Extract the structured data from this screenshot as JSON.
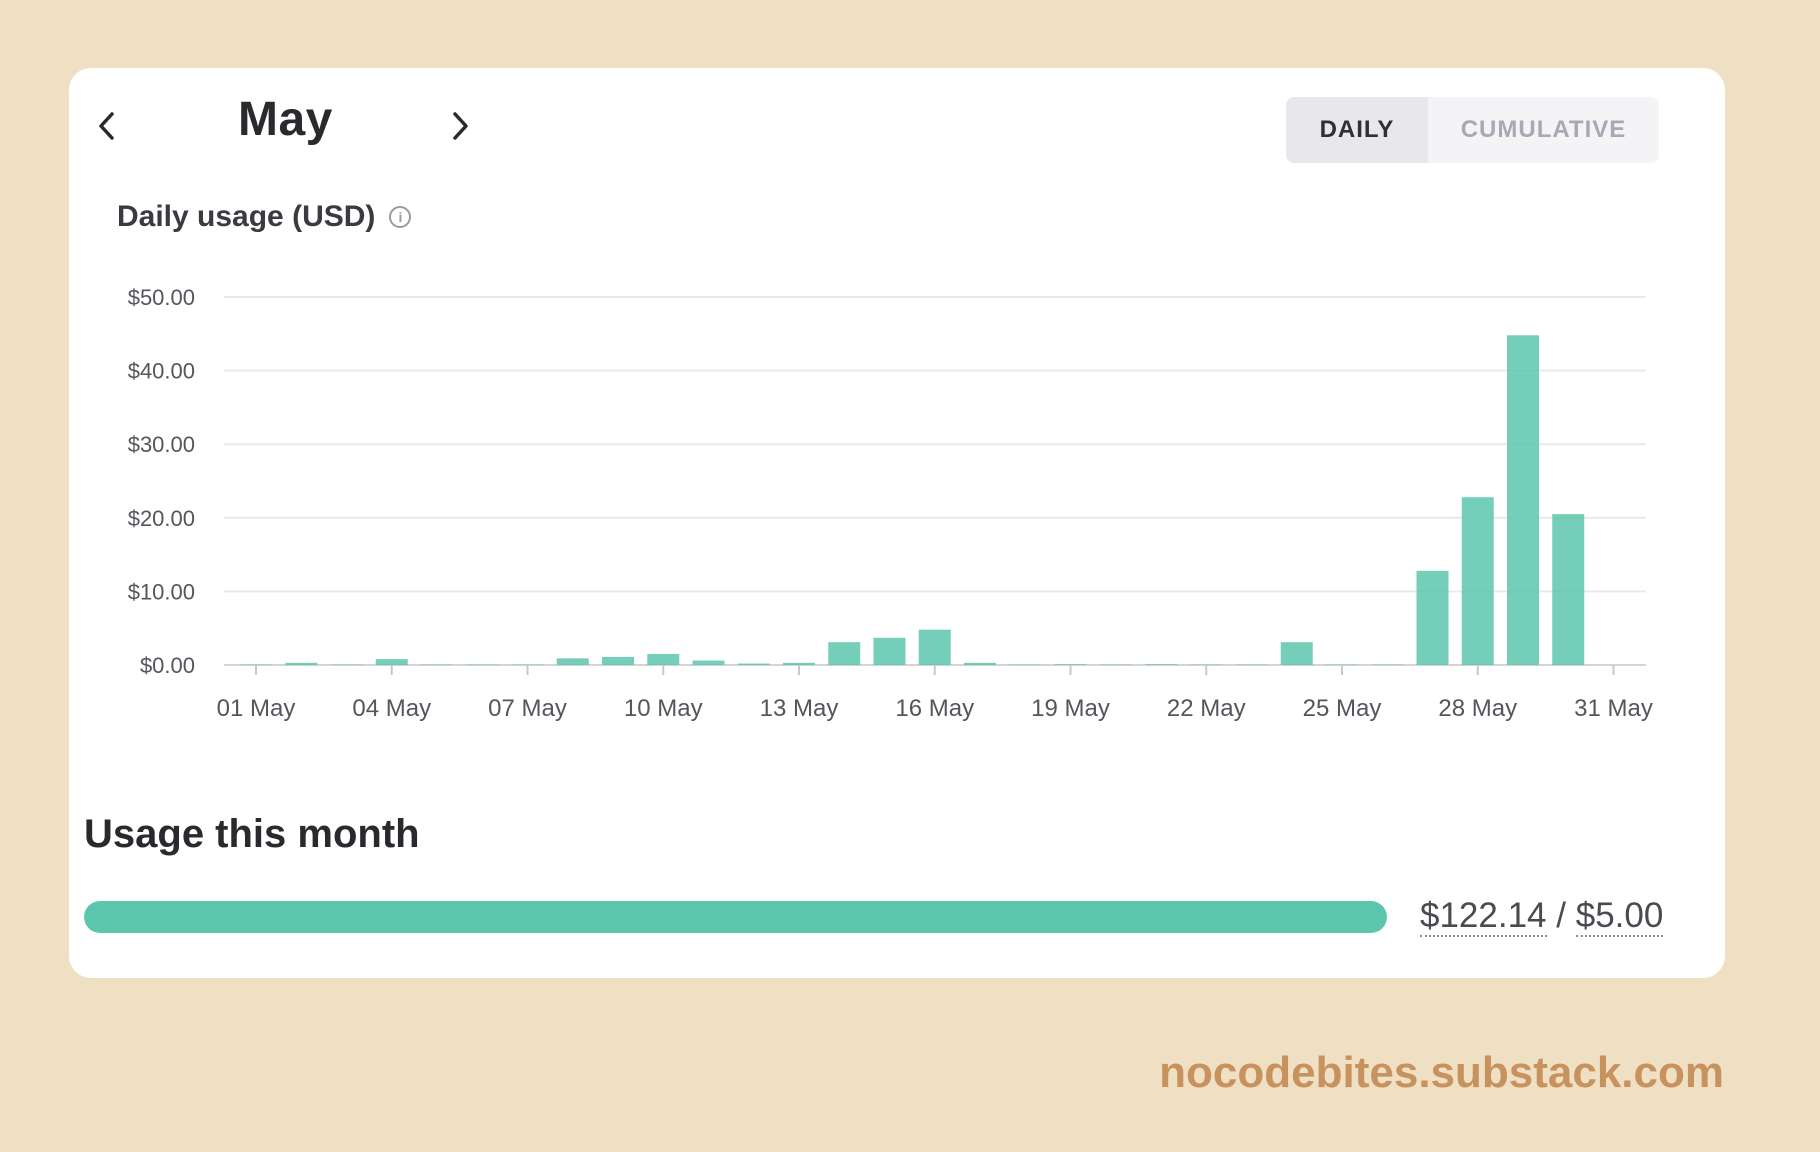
{
  "header": {
    "month": "May",
    "prev_icon": "chevron-left-icon",
    "next_icon": "chevron-right-icon"
  },
  "toggle": {
    "daily_label": "DAILY",
    "cumulative_label": "CUMULATIVE",
    "selected": "DAILY"
  },
  "chart_label": "Daily usage (USD)",
  "chart_label_icon": "info-icon",
  "chart_data": {
    "type": "bar",
    "title": "Daily usage (USD)",
    "categories": [
      "01 May",
      "02 May",
      "03 May",
      "04 May",
      "05 May",
      "06 May",
      "07 May",
      "08 May",
      "09 May",
      "10 May",
      "11 May",
      "12 May",
      "13 May",
      "14 May",
      "15 May",
      "16 May",
      "17 May",
      "18 May",
      "19 May",
      "20 May",
      "21 May",
      "22 May",
      "23 May",
      "24 May",
      "25 May",
      "26 May",
      "27 May",
      "28 May",
      "29 May",
      "30 May",
      "31 May"
    ],
    "values": [
      0.05,
      0.3,
      0.05,
      0.8,
      0.05,
      0.05,
      0.05,
      0.9,
      1.1,
      1.5,
      0.6,
      0.2,
      0.3,
      3.1,
      3.7,
      4.8,
      0.3,
      0.05,
      0.1,
      0.05,
      0.1,
      0.05,
      0.05,
      3.1,
      0.05,
      0.05,
      12.8,
      22.8,
      44.8,
      20.5,
      0
    ],
    "tick_labels_x": [
      "01 May",
      "04 May",
      "07 May",
      "10 May",
      "13 May",
      "16 May",
      "19 May",
      "22 May",
      "25 May",
      "28 May",
      "31 May"
    ],
    "tick_labels_y": [
      "$50.00",
      "$40.00",
      "$30.00",
      "$20.00",
      "$10.00",
      "$0.00"
    ],
    "ylim": [
      0,
      50
    ],
    "xlabel": "",
    "ylabel": "",
    "grid": true,
    "bar_color": "#5cc5ad"
  },
  "usage": {
    "title": "Usage this month",
    "used": "$122.14",
    "separator": "/",
    "limit": "$5.00",
    "progress_fraction": 1.0,
    "progress_color": "#5cc5ad"
  },
  "watermark": "nocodebites.substack.com"
}
